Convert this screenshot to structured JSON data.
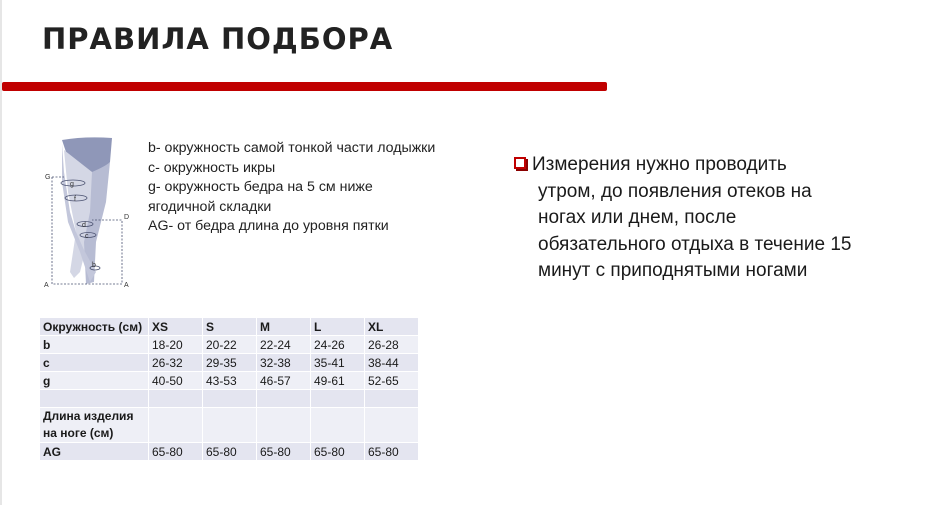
{
  "header": {
    "title": "ПРАВИЛА ПОДБОРА",
    "accent_color": "#c00000"
  },
  "diagram": {
    "labels": [
      "G",
      "g",
      "f",
      "d",
      "D",
      "c",
      "b",
      "A",
      "A"
    ]
  },
  "description": [
    "b- окружность самой тонкой части лодыжки",
    "c- окружность икры",
    "g- окружность бедра на 5 см ниже ягодичной складки",
    "AG- от бедра длина до уровня пятки"
  ],
  "note": {
    "icon": "square-bullet-icon",
    "lines": [
      "Измерения нужно проводить",
      "утром, до появления отеков на",
      "ногах или днем, после",
      "обязательного отдыха в течение 15",
      "минут с приподнятыми ногами"
    ]
  },
  "table": {
    "headers": [
      "Окружность (см)",
      "XS",
      "S",
      "M",
      "L",
      "XL"
    ],
    "rows": [
      [
        "b",
        "18-20",
        "20-22",
        "22-24",
        "24-26",
        "26-28"
      ],
      [
        "c",
        "26-32",
        "29-35",
        "32-38",
        "35-41",
        "38-44"
      ],
      [
        "g",
        "40-50",
        "43-53",
        "46-57",
        "49-61",
        "52-65"
      ],
      [
        "",
        "",
        "",
        "",
        "",
        ""
      ],
      [
        "Длина изделия на ноге (см)",
        "",
        "",
        "",
        "",
        ""
      ],
      [
        "AG",
        "65-80",
        "65-80",
        "65-80",
        "65-80",
        "65-80"
      ]
    ]
  }
}
